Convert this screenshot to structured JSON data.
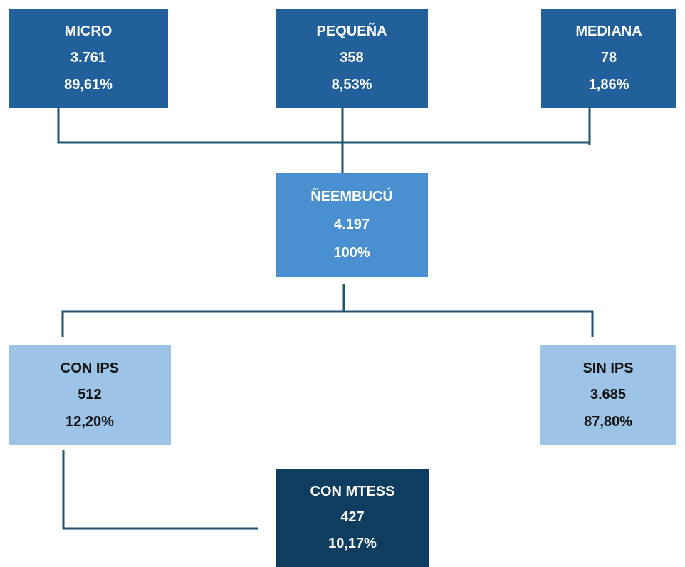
{
  "nodes": [
    {
      "label": "MICRO",
      "count": "3.761",
      "percent": "89,61%"
    },
    {
      "label": "PEQUEÑA",
      "count": "358",
      "percent": "8,53%"
    },
    {
      "label": "MEDIANA",
      "count": "78",
      "percent": "1,86%"
    },
    {
      "label": "ÑEEMBUCÚ",
      "count": "4.197",
      "percent": "100%"
    },
    {
      "label": "CON IPS",
      "count": "512",
      "percent": "12,20%"
    },
    {
      "label": "SIN IPS",
      "count": "3.685",
      "percent": "87,80%"
    },
    {
      "label": "CON MTESS",
      "count": "427",
      "percent": "10,17%"
    }
  ]
}
